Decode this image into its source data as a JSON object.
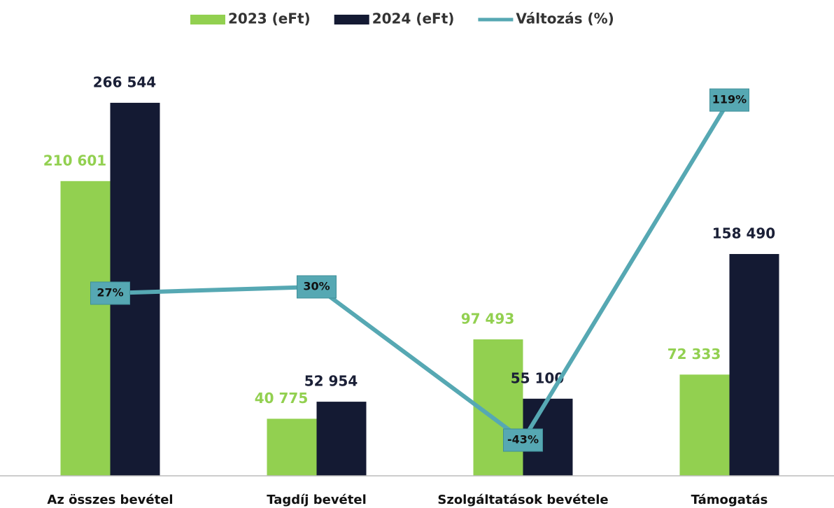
{
  "chart_data": {
    "type": "bar_line",
    "categories": [
      "Az összes bevétel",
      "Tagdíj bevétel",
      "Szolgáltatások bevétele",
      "Támogatás"
    ],
    "series": [
      {
        "name": "2023 (eFt)",
        "color": "#92d050",
        "values": [
          210601,
          40775,
          97493,
          72333
        ],
        "value_labels": [
          "210 601",
          "40 775",
          "97 493",
          "72 333"
        ]
      },
      {
        "name": "2024 (eFt)",
        "color": "#141a33",
        "values": [
          266544,
          52954,
          55100,
          158490
        ],
        "value_labels": [
          "266 544",
          "52 954",
          "55 100",
          "158 490"
        ]
      },
      {
        "name": "Változás (%)",
        "color": "#56a8b3",
        "axis": "y2",
        "type": "line",
        "values": [
          27,
          30,
          -43,
          119
        ],
        "value_labels": [
          "27%",
          "30%",
          "-43%",
          "119%"
        ]
      }
    ],
    "ylim": [
      0,
      300000
    ],
    "y2lim": [
      -60,
      140
    ]
  }
}
